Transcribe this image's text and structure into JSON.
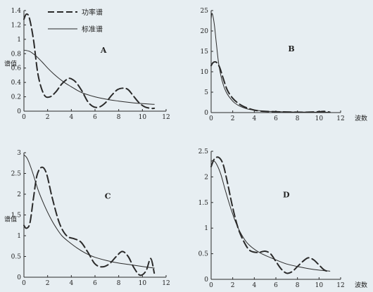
{
  "legend": {
    "power": "功率谱",
    "standard": "标准谱"
  },
  "colors": {
    "background": "#e7eef2",
    "ink": "#2a2a2a"
  },
  "chart_data": [
    {
      "id": "A",
      "type": "line",
      "label": "A",
      "ylabel": "谱值",
      "xlabel": "",
      "xlim": [
        0,
        12
      ],
      "ylim": [
        0,
        1.4
      ],
      "xticks": [
        0,
        2,
        4,
        6,
        8,
        10,
        12
      ],
      "yticks": [
        0,
        0.2,
        0.4,
        0.6,
        0.8,
        1.0,
        1.2,
        1.4
      ],
      "series": [
        {
          "key": "power",
          "style": "dashed",
          "x": [
            0,
            0.2,
            0.45,
            0.8,
            1.2,
            1.7,
            2.2,
            2.7,
            3.2,
            3.7,
            4.0,
            4.4,
            4.9,
            5.4,
            5.9,
            6.4,
            6.9,
            7.4,
            7.9,
            8.4,
            8.8,
            9.2,
            9.7,
            10.2,
            10.7,
            11.0
          ],
          "y": [
            1.28,
            1.35,
            1.3,
            1.0,
            0.5,
            0.23,
            0.2,
            0.27,
            0.38,
            0.45,
            0.45,
            0.4,
            0.28,
            0.13,
            0.06,
            0.06,
            0.12,
            0.22,
            0.3,
            0.32,
            0.3,
            0.22,
            0.12,
            0.06,
            0.04,
            0.04
          ]
        },
        {
          "key": "standard",
          "style": "solid",
          "x": [
            0,
            0.5,
            1,
            1.5,
            2,
            2.5,
            3,
            3.5,
            4,
            4.5,
            5,
            6,
            7,
            8,
            9,
            10,
            11
          ],
          "y": [
            0.85,
            0.83,
            0.77,
            0.69,
            0.6,
            0.52,
            0.45,
            0.39,
            0.34,
            0.29,
            0.25,
            0.2,
            0.165,
            0.14,
            0.12,
            0.105,
            0.095
          ]
        }
      ]
    },
    {
      "id": "B",
      "type": "line",
      "label": "B",
      "ylabel": "",
      "xlabel": "波数",
      "xlim": [
        0,
        12
      ],
      "ylim": [
        0,
        25
      ],
      "xticks": [
        0,
        2,
        4,
        6,
        8,
        10,
        12
      ],
      "yticks": [
        0,
        5,
        10,
        15,
        20,
        25
      ],
      "series": [
        {
          "key": "power",
          "style": "dashed",
          "x": [
            0,
            0.2,
            0.5,
            0.8,
            1.1,
            1.5,
            2,
            2.5,
            3,
            3.5,
            4,
            4.5,
            5,
            6,
            7,
            8,
            9,
            10,
            10.5,
            11
          ],
          "y": [
            11.5,
            12.3,
            12.3,
            11.0,
            8.5,
            5.5,
            3.5,
            2.3,
            1.5,
            1.0,
            0.6,
            0.4,
            0.3,
            0.2,
            0.15,
            0.1,
            0.1,
            0.2,
            0.3,
            0.1
          ]
        },
        {
          "key": "standard",
          "style": "solid",
          "x": [
            0,
            0.1,
            0.3,
            0.5,
            0.7,
            1.0,
            1.4,
            2,
            2.5,
            3,
            3.5,
            4,
            5,
            6,
            7,
            8,
            9,
            10,
            11
          ],
          "y": [
            23.0,
            24.3,
            21.5,
            16.5,
            12.0,
            8.0,
            5.0,
            2.8,
            1.8,
            1.2,
            0.8,
            0.6,
            0.35,
            0.25,
            0.18,
            0.14,
            0.12,
            0.1,
            0.08
          ]
        }
      ]
    },
    {
      "id": "C",
      "type": "line",
      "label": "C",
      "ylabel": "谱值",
      "xlabel": "",
      "xlim": [
        0,
        12
      ],
      "ylim": [
        0,
        3.0
      ],
      "xticks": [
        0,
        2,
        4,
        6,
        8,
        10,
        12
      ],
      "yticks": [
        0,
        0.5,
        1.0,
        1.5,
        2.0,
        2.5,
        3.0
      ],
      "series": [
        {
          "key": "power",
          "style": "dashed",
          "x": [
            0,
            0.2,
            0.5,
            0.8,
            1.1,
            1.5,
            1.9,
            2.4,
            3.0,
            3.6,
            4.2,
            4.8,
            5.4,
            6.0,
            6.6,
            7.2,
            7.8,
            8.3,
            8.8,
            9.3,
            9.8,
            10.3,
            10.7,
            11.0
          ],
          "y": [
            1.25,
            1.18,
            1.3,
            1.9,
            2.45,
            2.65,
            2.5,
            1.9,
            1.3,
            1.0,
            0.93,
            0.85,
            0.6,
            0.32,
            0.25,
            0.32,
            0.5,
            0.62,
            0.5,
            0.22,
            0.05,
            0.15,
            0.45,
            0.1
          ]
        },
        {
          "key": "standard",
          "style": "solid",
          "x": [
            0,
            0.3,
            0.7,
            1.2,
            1.7,
            2.2,
            2.7,
            3.2,
            3.8,
            4.5,
            5.2,
            6.0,
            7.0,
            8.0,
            9.0,
            10.0,
            11.0
          ],
          "y": [
            2.95,
            2.85,
            2.55,
            2.1,
            1.75,
            1.45,
            1.2,
            1.0,
            0.85,
            0.7,
            0.58,
            0.48,
            0.4,
            0.34,
            0.3,
            0.26,
            0.22
          ]
        }
      ]
    },
    {
      "id": "D",
      "type": "line",
      "label": "D",
      "ylabel": "",
      "xlabel": "波数",
      "xlim": [
        0,
        12
      ],
      "ylim": [
        0,
        2.5
      ],
      "xticks": [
        0,
        2,
        4,
        6,
        8,
        10,
        12
      ],
      "yticks": [
        0,
        0.5,
        1.0,
        1.5,
        2.0,
        2.5
      ],
      "series": [
        {
          "key": "power",
          "style": "dashed",
          "x": [
            0,
            0.3,
            0.7,
            1.1,
            1.5,
            2.0,
            2.5,
            3.0,
            3.5,
            4.0,
            4.5,
            5.0,
            5.5,
            6.0,
            6.5,
            7.0,
            7.5,
            8.0,
            8.5,
            9.0,
            9.5,
            10.0,
            10.5,
            11.0
          ],
          "y": [
            2.2,
            2.35,
            2.38,
            2.25,
            1.9,
            1.4,
            1.0,
            0.75,
            0.58,
            0.53,
            0.53,
            0.55,
            0.5,
            0.35,
            0.2,
            0.12,
            0.15,
            0.25,
            0.35,
            0.42,
            0.38,
            0.28,
            0.18,
            0.15
          ]
        },
        {
          "key": "standard",
          "style": "solid",
          "x": [
            0,
            0.2,
            0.5,
            0.9,
            1.3,
            1.8,
            2.3,
            2.8,
            3.3,
            3.8,
            4.5,
            5.2,
            6.0,
            7.0,
            8.0,
            9.0,
            10.0,
            11.0
          ],
          "y": [
            2.3,
            2.32,
            2.25,
            2.05,
            1.75,
            1.4,
            1.1,
            0.88,
            0.72,
            0.62,
            0.52,
            0.45,
            0.38,
            0.3,
            0.25,
            0.21,
            0.18,
            0.16
          ]
        }
      ]
    }
  ]
}
